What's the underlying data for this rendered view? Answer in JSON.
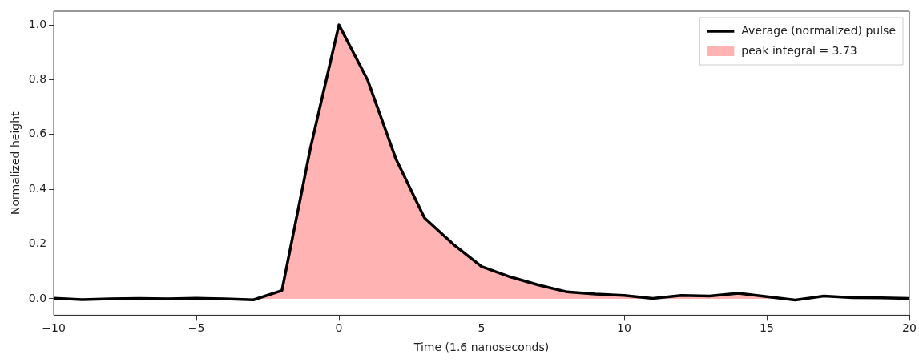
{
  "chart_data": {
    "type": "line",
    "xlabel": "Time (1.6 nanoseconds)",
    "ylabel": "Normalized height",
    "x": [
      -10,
      -9,
      -8,
      -7,
      -6,
      -5,
      -4,
      -3,
      -2,
      -1,
      0,
      1,
      2,
      3,
      4,
      5,
      6,
      7,
      8,
      9,
      10,
      11,
      12,
      13,
      14,
      15,
      16,
      17,
      18,
      19,
      20
    ],
    "series": [
      {
        "name": "Average (normalized) pulse",
        "color": "#000000",
        "values": [
          0.002,
          -0.003,
          0,
          0.001,
          0,
          0.002,
          0,
          -0.004,
          0.03,
          0.55,
          1.0,
          0.8,
          0.51,
          0.295,
          0.2,
          0.118,
          0.08,
          0.05,
          0.025,
          0.017,
          0.012,
          0.001,
          0.012,
          0.01,
          0.02,
          0.008,
          -0.005,
          0.01,
          0.004,
          0.003,
          0.001
        ]
      },
      {
        "name": "peak integral = 3.73",
        "type": "area",
        "color": "#ffb3b3",
        "x": [
          -3,
          -2,
          -1,
          0,
          1,
          2,
          3,
          4,
          5,
          6,
          7,
          8,
          9,
          10,
          11,
          12,
          13,
          14,
          15,
          16
        ],
        "values": [
          -0.004,
          0.03,
          0.55,
          1.0,
          0.8,
          0.51,
          0.295,
          0.2,
          0.118,
          0.08,
          0.05,
          0.025,
          0.017,
          0.012,
          0.001,
          0.012,
          0.01,
          0.02,
          0.008,
          -0.005
        ]
      }
    ],
    "xlim": [
      -10,
      20
    ],
    "xticks": [
      {
        "value": -10,
        "label": "−10"
      },
      {
        "value": -5,
        "label": "−5"
      },
      0,
      5,
      10,
      15,
      20
    ],
    "ylim": [
      -0.06,
      1.05
    ],
    "yticks": [
      {
        "value": 0,
        "label": "0.0"
      },
      {
        "value": 0.2,
        "label": "0.2"
      },
      {
        "value": 0.4,
        "label": "0.4"
      },
      {
        "value": 0.6,
        "label": "0.6"
      },
      {
        "value": 0.8,
        "label": "0.8"
      },
      {
        "value": 1,
        "label": "1.0"
      }
    ],
    "grid": false,
    "legend": "top right",
    "marker": "none",
    "line_style": "solid"
  }
}
